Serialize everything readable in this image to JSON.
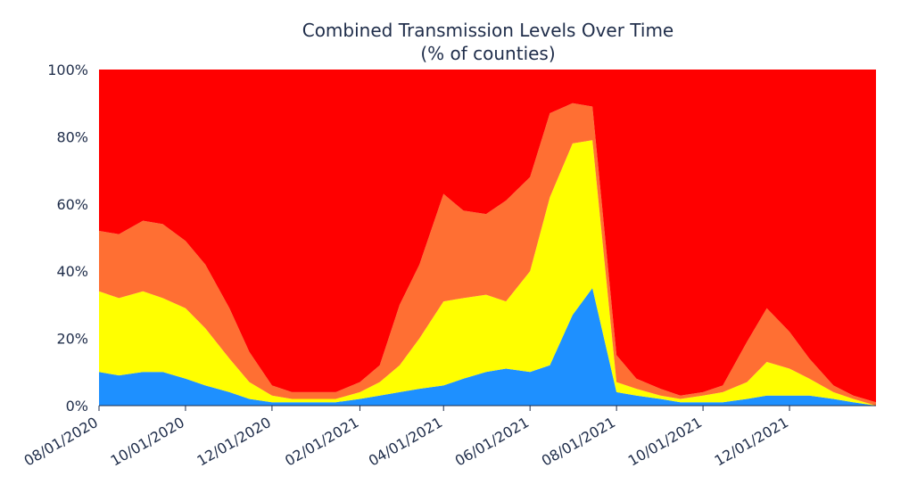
{
  "chart_data": {
    "type": "area",
    "stacked": true,
    "normalized_percent": true,
    "title": "Combined Transmission Levels Over Time",
    "subtitle": "(% of counties)",
    "xlabel": "",
    "ylabel": "",
    "ylim": [
      0,
      100
    ],
    "y_ticks": [
      "0%",
      "20%",
      "40%",
      "60%",
      "80%",
      "100%"
    ],
    "x_ticks": [
      "08/01/2020",
      "10/01/2020",
      "12/01/2020",
      "02/01/2021",
      "04/01/2021",
      "06/01/2021",
      "08/01/2021",
      "10/01/2021",
      "12/01/2021"
    ],
    "x_range": [
      "08/01/2020",
      "01/31/2022"
    ],
    "grid": false,
    "legend": "none",
    "dates": [
      "08/01/2020",
      "08/15/2020",
      "09/01/2020",
      "09/15/2020",
      "10/01/2020",
      "10/15/2020",
      "11/01/2020",
      "11/15/2020",
      "12/01/2020",
      "12/15/2020",
      "01/01/2021",
      "01/15/2021",
      "02/01/2021",
      "02/15/2021",
      "03/01/2021",
      "03/15/2021",
      "04/01/2021",
      "04/15/2021",
      "05/01/2021",
      "05/15/2021",
      "06/01/2021",
      "06/15/2021",
      "07/01/2021",
      "07/15/2021",
      "08/01/2021",
      "08/15/2021",
      "09/01/2021",
      "09/15/2021",
      "10/01/2021",
      "10/15/2021",
      "11/01/2021",
      "11/15/2021",
      "12/01/2021",
      "12/15/2021",
      "01/01/2022",
      "01/15/2022",
      "01/31/2022"
    ],
    "series": [
      {
        "color": "#1e90ff",
        "values": [
          10,
          9,
          10,
          10,
          8,
          6,
          4,
          2,
          1,
          1,
          1,
          1,
          2,
          3,
          4,
          5,
          6,
          8,
          10,
          11,
          10,
          12,
          27,
          35,
          4,
          3,
          2,
          1,
          1,
          1,
          2,
          3,
          3,
          3,
          2,
          1,
          0
        ]
      },
      {
        "color": "#ffff00",
        "values": [
          24,
          23,
          24,
          22,
          21,
          17,
          10,
          5,
          2,
          1,
          1,
          1,
          2,
          4,
          8,
          15,
          25,
          24,
          23,
          20,
          30,
          50,
          51,
          44,
          3,
          2,
          1,
          1,
          2,
          3,
          5,
          10,
          8,
          5,
          2,
          1,
          0
        ]
      },
      {
        "color": "#ff6f33",
        "values": [
          18,
          19,
          21,
          22,
          20,
          19,
          15,
          9,
          3,
          2,
          2,
          2,
          3,
          5,
          18,
          22,
          32,
          26,
          24,
          30,
          28,
          25,
          12,
          10,
          8,
          3,
          2,
          1,
          1,
          2,
          12,
          16,
          11,
          6,
          2,
          1,
          1
        ]
      },
      {
        "color": "#ff0000",
        "values": [
          48,
          49,
          45,
          46,
          51,
          58,
          71,
          84,
          94,
          96,
          96,
          96,
          93,
          88,
          70,
          58,
          37,
          42,
          43,
          39,
          32,
          13,
          10,
          11,
          85,
          92,
          95,
          97,
          96,
          94,
          81,
          71,
          78,
          86,
          94,
          97,
          99
        ]
      }
    ]
  }
}
